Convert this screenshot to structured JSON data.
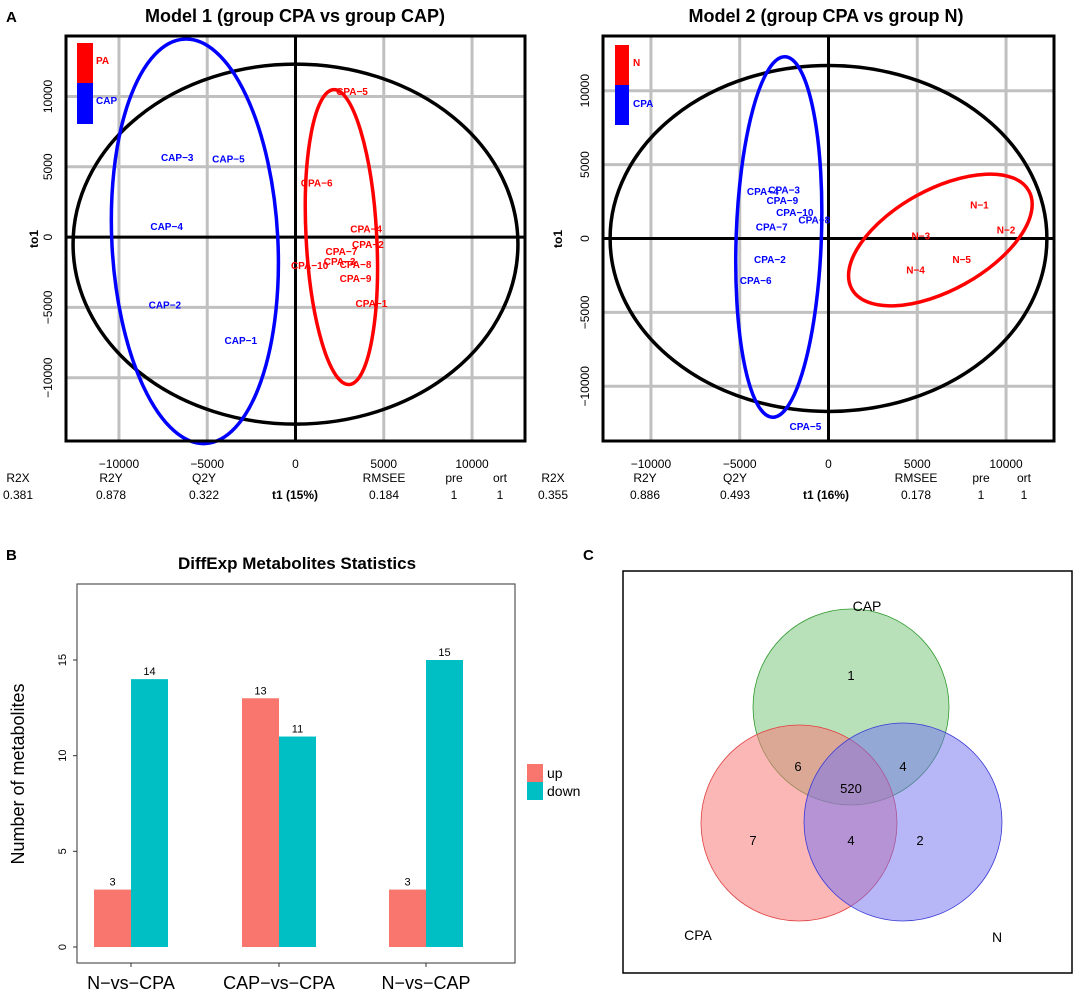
{
  "panels": {
    "a": "A",
    "b": "B",
    "c": "C"
  },
  "chart_data": [
    {
      "type": "scatter",
      "title": "Model 1 (group CPA vs group CAP)",
      "xlabel": "t1 (15%)",
      "ylabel": "to1",
      "xlim": [
        -13000,
        13000
      ],
      "ylim": [
        -14500,
        14300
      ],
      "xticks": [
        {
          "v": -10000,
          "t": "−10000"
        },
        {
          "v": -5000,
          "t": "−5000"
        },
        {
          "v": 0,
          "t": "0"
        },
        {
          "v": 5000,
          "t": "5000"
        },
        {
          "v": 10000,
          "t": "10000"
        }
      ],
      "yticks": [
        {
          "v": -10000,
          "t": "−10000"
        },
        {
          "v": -5000,
          "t": "−5000"
        },
        {
          "v": 0,
          "t": "0"
        },
        {
          "v": 5000,
          "t": "5000"
        },
        {
          "v": 10000,
          "t": "10000"
        }
      ],
      "legend": [
        {
          "label": "PA",
          "color": "#ff0000"
        },
        {
          "label": "CAP",
          "color": "#0000ff"
        }
      ],
      "stats_headers": [
        "R2X",
        "R2Y",
        "Q2Y",
        "RMSEE",
        "pre",
        "ort"
      ],
      "stats_values": [
        "0.381",
        "0.878",
        "0.322",
        "0.184",
        "1",
        "1"
      ],
      "ellipses": [
        {
          "group": "T2",
          "cx": 0,
          "cy": -500,
          "rx": 12600,
          "ry": 12800,
          "color": "#000000"
        },
        {
          "group": "CAP",
          "cx": -5700,
          "cy": -300,
          "rx": 4700,
          "ry": 14400,
          "color": "#0000ff",
          "rot": -3
        },
        {
          "group": "PA",
          "cx": 2600,
          "cy": 0,
          "rx": 2000,
          "ry": 10500,
          "color": "#ff0000",
          "rot": -3
        }
      ],
      "points": [
        {
          "label": "CPA−5",
          "x": 3200,
          "y": 10400,
          "color": "#ff0000"
        },
        {
          "label": "CPA−6",
          "x": 1200,
          "y": 3900,
          "color": "#ff0000"
        },
        {
          "label": "CPA−4",
          "x": 4000,
          "y": 600,
          "color": "#ff0000"
        },
        {
          "label": "CPA−2",
          "x": 4100,
          "y": -500,
          "color": "#ff0000"
        },
        {
          "label": "CPA−7",
          "x": 2600,
          "y": -1000,
          "color": "#ff0000"
        },
        {
          "label": "CPA−3",
          "x": 2500,
          "y": -1700,
          "color": "#ff0000"
        },
        {
          "label": "CPA−8",
          "x": 3400,
          "y": -1900,
          "color": "#ff0000"
        },
        {
          "label": "CPA−10",
          "x": 800,
          "y": -2000,
          "color": "#ff0000"
        },
        {
          "label": "CPA−9",
          "x": 3400,
          "y": -2900,
          "color": "#ff0000"
        },
        {
          "label": "CPA−1",
          "x": 4300,
          "y": -4700,
          "color": "#ff0000"
        },
        {
          "label": "CAP−3",
          "x": -6700,
          "y": 5700,
          "color": "#0000ff"
        },
        {
          "label": "CAP−5",
          "x": -3800,
          "y": 5600,
          "color": "#0000ff"
        },
        {
          "label": "CAP−4",
          "x": -7300,
          "y": 800,
          "color": "#0000ff"
        },
        {
          "label": "CAP−2",
          "x": -7400,
          "y": -4800,
          "color": "#0000ff"
        },
        {
          "label": "CAP−1",
          "x": -3100,
          "y": -7300,
          "color": "#0000ff"
        }
      ]
    },
    {
      "type": "scatter",
      "title": "Model 2 (group CPA vs group N)",
      "xlabel": "t1 (16%)",
      "ylabel": "to1",
      "xlim": [
        -12700,
        12700
      ],
      "ylim": [
        -13700,
        13700
      ],
      "xticks": [
        {
          "v": -10000,
          "t": "−10000"
        },
        {
          "v": -5000,
          "t": "−5000"
        },
        {
          "v": 0,
          "t": "0"
        },
        {
          "v": 5000,
          "t": "5000"
        },
        {
          "v": 10000,
          "t": "10000"
        }
      ],
      "yticks": [
        {
          "v": -10000,
          "t": "−10000"
        },
        {
          "v": -5000,
          "t": "−5000"
        },
        {
          "v": 0,
          "t": "0"
        },
        {
          "v": 5000,
          "t": "5000"
        },
        {
          "v": 10000,
          "t": "10000"
        }
      ],
      "legend": [
        {
          "label": "N",
          "color": "#ff0000"
        },
        {
          "label": "CPA",
          "color": "#0000ff"
        }
      ],
      "stats_headers": [
        "R2X",
        "R2Y",
        "Q2Y",
        "RMSEE",
        "pre",
        "ort"
      ],
      "stats_values": [
        "0.355",
        "0.886",
        "0.493",
        "0.178",
        "1",
        "1"
      ],
      "ellipses": [
        {
          "group": "T2",
          "cx": 0,
          "cy": 0,
          "rx": 12300,
          "ry": 11700,
          "color": "#000000"
        },
        {
          "group": "CPA",
          "cx": -2800,
          "cy": 100,
          "rx": 2400,
          "ry": 12200,
          "color": "#0000ff",
          "rot": 2
        },
        {
          "group": "N",
          "cx": 6300,
          "cy": -100,
          "rx": 5700,
          "ry": 3400,
          "color": "#ff0000",
          "rot": -29
        }
      ],
      "points": [
        {
          "label": "CPA−3",
          "x": -2500,
          "y": 3300,
          "color": "#0000ff"
        },
        {
          "label": "CPA−4",
          "x": -3700,
          "y": 3200,
          "color": "#0000ff"
        },
        {
          "label": "CPA−9",
          "x": -2600,
          "y": 2600,
          "color": "#0000ff"
        },
        {
          "label": "CPA−10",
          "x": -1900,
          "y": 1800,
          "color": "#0000ff"
        },
        {
          "label": "CPA−8",
          "x": -800,
          "y": 1300,
          "color": "#0000ff"
        },
        {
          "label": "CPA−7",
          "x": -3200,
          "y": 800,
          "color": "#0000ff"
        },
        {
          "label": "CPA−2",
          "x": -3300,
          "y": -1400,
          "color": "#0000ff"
        },
        {
          "label": "CPA−6",
          "x": -4100,
          "y": -2800,
          "color": "#0000ff"
        },
        {
          "label": "CPA−5",
          "x": -1300,
          "y": -12700,
          "color": "#0000ff"
        },
        {
          "label": "N−1",
          "x": 8500,
          "y": 2300,
          "color": "#ff0000"
        },
        {
          "label": "N−2",
          "x": 10000,
          "y": 600,
          "color": "#ff0000"
        },
        {
          "label": "N−3",
          "x": 5200,
          "y": 200,
          "color": "#ff0000"
        },
        {
          "label": "N−5",
          "x": 7500,
          "y": -1400,
          "color": "#ff0000"
        },
        {
          "label": "N−4",
          "x": 4900,
          "y": -2100,
          "color": "#ff0000"
        }
      ]
    },
    {
      "type": "bar",
      "title": "DiffExp Metabolites Statistics",
      "xlabel": "",
      "ylabel": "Number of metabolites",
      "ylim": [
        0,
        18.5
      ],
      "yticks": [
        0,
        5,
        10,
        15
      ],
      "categories": [
        "N−vs−CPA",
        "CAP−vs−CPA",
        "N−vs−CAP"
      ],
      "series": [
        {
          "name": "up",
          "color": "#f8766d",
          "values": [
            3,
            13,
            3
          ]
        },
        {
          "name": "down",
          "color": "#00bfc4",
          "values": [
            14,
            11,
            15
          ]
        }
      ]
    },
    {
      "type": "venn",
      "sets": [
        {
          "name": "CAP",
          "color": "#7fc97f"
        },
        {
          "name": "CPA",
          "color": "#f87a7a"
        },
        {
          "name": "N",
          "color": "#6f6ff2"
        }
      ],
      "regions": {
        "CAP_only": 1,
        "CPA_only": 7,
        "N_only": 2,
        "CPA_CAP": 6,
        "CAP_N": 4,
        "CPA_N": 4,
        "all": 520
      }
    }
  ]
}
